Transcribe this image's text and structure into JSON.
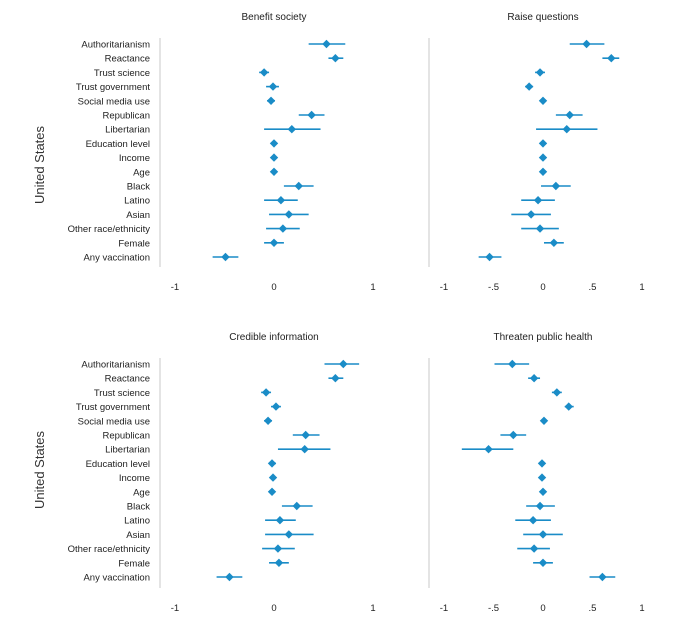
{
  "colors": {
    "marker": "#1a8cc7",
    "axis": "#c8c8c8"
  },
  "figure": {
    "row_labels": [
      "United States",
      "United States"
    ],
    "variables": [
      "Authoritarianism",
      "Reactance",
      "Trust science",
      "Trust government",
      "Social media use",
      "Republican",
      "Libertarian",
      "Education level",
      "Income",
      "Age",
      "Black",
      "Latino",
      "Asian",
      "Other race/ethnicity",
      "Female",
      "Any vaccination"
    ]
  },
  "chart_data": [
    {
      "type": "scatter",
      "subtype": "coefficient-plot",
      "title": "Benefit society",
      "xlim": [
        -1,
        1
      ],
      "xticks": [
        "-1",
        "0",
        "1"
      ],
      "categories": [
        "Authoritarianism",
        "Reactance",
        "Trust science",
        "Trust government",
        "Social media use",
        "Republican",
        "Libertarian",
        "Education level",
        "Income",
        "Age",
        "Black",
        "Latino",
        "Asian",
        "Other race/ethnicity",
        "Female",
        "Any vaccination"
      ],
      "estimates": [
        0.53,
        0.62,
        -0.1,
        -0.01,
        -0.03,
        0.38,
        0.18,
        0.0,
        0.0,
        0.0,
        0.25,
        0.07,
        0.15,
        0.09,
        0.0,
        -0.49
      ],
      "ci_low": [
        0.35,
        0.55,
        -0.15,
        -0.08,
        -0.07,
        0.25,
        -0.1,
        -0.03,
        -0.02,
        -0.02,
        0.1,
        -0.1,
        -0.05,
        -0.08,
        -0.1,
        -0.62
      ],
      "ci_high": [
        0.72,
        0.7,
        -0.05,
        0.05,
        0.01,
        0.51,
        0.47,
        0.03,
        0.02,
        0.02,
        0.4,
        0.24,
        0.35,
        0.26,
        0.1,
        -0.36
      ]
    },
    {
      "type": "scatter",
      "subtype": "coefficient-plot",
      "title": "Raise questions",
      "xlim": [
        -1,
        1
      ],
      "xticks": [
        "-1",
        "-.5",
        "0",
        ".5",
        "1"
      ],
      "categories": [
        "Authoritarianism",
        "Reactance",
        "Trust science",
        "Trust government",
        "Social media use",
        "Republican",
        "Libertarian",
        "Education level",
        "Income",
        "Age",
        "Black",
        "Latino",
        "Asian",
        "Other race/ethnicity",
        "Female",
        "Any vaccination"
      ],
      "estimates": [
        0.44,
        0.69,
        -0.03,
        -0.14,
        0.0,
        0.27,
        0.24,
        0.0,
        0.0,
        0.0,
        0.13,
        -0.05,
        -0.12,
        -0.03,
        0.11,
        -0.54
      ],
      "ci_low": [
        0.27,
        0.6,
        -0.08,
        -0.18,
        -0.03,
        0.13,
        -0.07,
        -0.03,
        -0.02,
        -0.02,
        -0.02,
        -0.22,
        -0.32,
        -0.22,
        0.01,
        -0.65
      ],
      "ci_high": [
        0.62,
        0.77,
        0.02,
        -0.1,
        0.03,
        0.4,
        0.55,
        0.03,
        0.02,
        0.02,
        0.28,
        0.12,
        0.08,
        0.16,
        0.21,
        -0.42
      ]
    },
    {
      "type": "scatter",
      "subtype": "coefficient-plot",
      "title": "Credible information",
      "xlim": [
        -1,
        1
      ],
      "xticks": [
        "-1",
        "0",
        "1"
      ],
      "categories": [
        "Authoritarianism",
        "Reactance",
        "Trust science",
        "Trust government",
        "Social media use",
        "Republican",
        "Libertarian",
        "Education level",
        "Income",
        "Age",
        "Black",
        "Latino",
        "Asian",
        "Other race/ethnicity",
        "Female",
        "Any vaccination"
      ],
      "estimates": [
        0.7,
        0.62,
        -0.08,
        0.02,
        -0.06,
        0.32,
        0.31,
        -0.02,
        -0.01,
        -0.02,
        0.23,
        0.06,
        0.15,
        0.04,
        0.05,
        -0.45
      ],
      "ci_low": [
        0.51,
        0.55,
        -0.13,
        -0.03,
        -0.1,
        0.19,
        0.04,
        -0.05,
        -0.04,
        -0.05,
        0.08,
        -0.09,
        -0.09,
        -0.12,
        -0.05,
        -0.58
      ],
      "ci_high": [
        0.86,
        0.7,
        -0.03,
        0.07,
        -0.02,
        0.46,
        0.57,
        0.02,
        0.02,
        0.01,
        0.39,
        0.22,
        0.4,
        0.21,
        0.15,
        -0.32
      ]
    },
    {
      "type": "scatter",
      "subtype": "coefficient-plot",
      "title": "Threaten public health",
      "xlim": [
        -1,
        1
      ],
      "xticks": [
        "-1",
        "-.5",
        "0",
        ".5",
        "1"
      ],
      "categories": [
        "Authoritarianism",
        "Reactance",
        "Trust science",
        "Trust government",
        "Social media use",
        "Republican",
        "Libertarian",
        "Education level",
        "Income",
        "Age",
        "Black",
        "Latino",
        "Asian",
        "Other race/ethnicity",
        "Female",
        "Any vaccination"
      ],
      "estimates": [
        -0.31,
        -0.09,
        0.14,
        0.26,
        0.01,
        -0.3,
        -0.55,
        -0.01,
        -0.01,
        0.0,
        -0.03,
        -0.1,
        0.0,
        -0.09,
        0.0,
        0.6
      ],
      "ci_low": [
        -0.49,
        -0.15,
        0.09,
        0.22,
        -0.02,
        -0.43,
        -0.82,
        -0.04,
        -0.04,
        -0.02,
        -0.17,
        -0.28,
        -0.2,
        -0.26,
        -0.1,
        0.47
      ],
      "ci_high": [
        -0.14,
        -0.03,
        0.19,
        0.31,
        0.04,
        -0.17,
        -0.3,
        0.02,
        0.02,
        0.02,
        0.12,
        0.08,
        0.2,
        0.07,
        0.1,
        0.73
      ]
    }
  ]
}
